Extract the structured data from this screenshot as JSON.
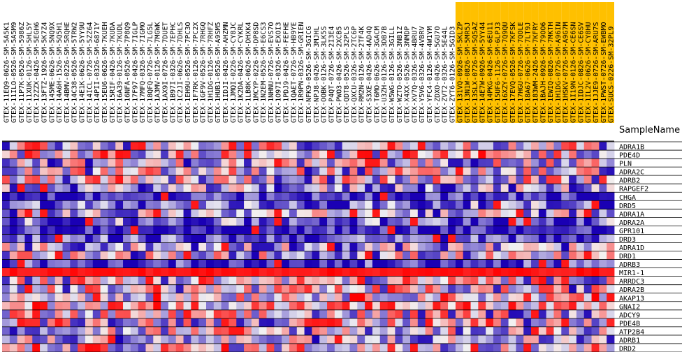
{
  "chart_data": {
    "type": "heatmap",
    "column_header_title": "SampleName",
    "colors": {
      "low": "#1a00b4",
      "mid": "#f2f2f2",
      "high": "#ff0000",
      "header_highlight": "#ffc000",
      "grid": "#000000"
    },
    "samples": [
      "GTEX-11EQ9-0626-SM-5A5K1",
      "GTEX-11ILO-0526-SM-5A5M9",
      "GTEX-11P7K-0526-SM-5986Z",
      "GTEX-11XUK-0126-SM-5HL5Y",
      "GTEX-12ZZX-0426-SM-5EGH6",
      "GTEX-13FTZ-1926-SM-5K7Z4",
      "GTEX-145ME-0626-SM-5NQ9X",
      "GTEX-14A6H-1526-SM-5Q5H1",
      "GTEX-14BMV-0226-SM-5RQHE",
      "GTEX-14C38-0526-SM-5TRW2",
      "GTEX-14E1K-0626-SM-5YY9U",
      "GTEX-14ICL-0726-SM-5ZZ64",
      "GTEX-14PII-0326-SM-6871Y",
      "GTEX-15EU6-0626-SM-7KUEH",
      "GTEX-15RIF-0426-SM-7KUDA",
      "GTEX-16A39-0126-SM-7KUDL",
      "GTEX-16NFA-0526-SM-7P8Q9",
      "GTEX-17F97-0426-SM-7IGLP",
      "GTEX-17MFQ-0326-SM-7IGMO",
      "GTEX-18QFQ-0726-SM-7LG5L",
      "GTEX-1A3MV-0126-SM-7MGWK",
      "GTEX-1AX9I-0726-SM-7DUET",
      "GTEX-1B97I-0326-SM-7EPHC",
      "GTEX-1C2JI-0626-SM-7DHLS",
      "GTEX-1EH9U-0526-SM-7PC3O",
      "GTEX-1F7RK-0126-SM-7PC2X",
      "GTEX-1GF9V-0526-SM-7RHGQ",
      "GTEX-1H1DG-0126-SM-7RHFZ",
      "GTEX-1HUB1-0526-SM-A9SM5",
      "GTEX-1IDJI-0426-SM-AHZMN",
      "GTEX-1JMQI-0226-SM-CY8JC",
      "GTEX-1K2DA-0426-SM-CYKRL",
      "GTEX-1LB8K-0626-SM-DHXK4",
      "GTEX-1MCYP-0226-SM-DP8SD",
      "GTEX-1N2EM-0526-SM-E6CS3",
      "GTEX-1NHNU-0726-SM-EVS7O",
      "GTEX-1O97I-0326-SM-EXOI3",
      "GTEX-1PDJ9-0426-SM-FEFHE",
      "GTEX-1QAET-0726-SM-HB9YE",
      "GTEX-1R9PN-0326-SM-GRIEN",
      "GTEX-NFK9-0526-SM-3GICG",
      "GTEX-NPJ8-0426-SM-3MJHL",
      "GTEX-OOBK-0126-SM-3LK5S",
      "GTEX-P4QT-0726-SM-2I3E4",
      "GTEX-PWO3-0426-SM-2XCB5",
      "GTEX-QDT8-0526-SM-32PLS",
      "GTEX-QXCU-0326-SM-2TC6P",
      "GTEX-RM2N-0126-SM-2TF4K",
      "GTEX-S3XE-0426-SM-4AD4Q",
      "GTEX-T6MO-0626-SM-3GACM",
      "GTEX-U3ZH-0126-SM-3DB7B",
      "GTEX-W5WG-0126-SM-3GILL",
      "GTEX-WZTO-0526-SM-3NB1Z",
      "GTEX-X4XX-0526-SM-3NMDP",
      "GTEX-XV7Q-0326-SM-4BRU7",
      "GTEX-Y5V6-0326-SM-4VBRV",
      "GTEX-YFC4-0126-SM-4W1YM",
      "GTEX-ZDXO-0426-SM-5GU7O",
      "GTEX-ZVT2-0326-SM-5E44L",
      "GTEX-ZYT6-0126-SM-5GID3",
      "GTEX-131VQ-0926-SM-5KLZP",
      "GTEX-13N1W-0826-SM-5MR5J",
      "GTEX-13SLX-0726-SM-5Q5AZ",
      "GTEX-14E7W-0926-SM-5YY44",
      "GTEX-14PKG-0426-SM-6EU11",
      "GTEX-15UF6-1126-SM-6LPJ3",
      "GTEX-16XZY-0726-SM-7Q9QU",
      "GTEX-17EVQ-0526-SM-7KFSK",
      "GTEX-17HGU-0726-SM-7QOLE",
      "GTEX-18A67-0626-SM-7LT9J",
      "GTEX-183WM-2426-SM-7KFRY",
      "GTEX-1BAJH-0926-SM-79OO6",
      "GTEX-1EWIQ-0826-SM-7MKTH",
      "GTEX-1H1DG-0726-SM-A96IN",
      "GTEX-1HSKV-0726-SM-A9G7M",
      "GTEX-1I19N-0126-SM-CE6SN",
      "GTEX-1IDJC-0826-SM-CE6SV",
      "GTEX-1IL2V-0626-SM-CY8HU",
      "GTEX-1JJE9-0726-SM-ARU7S",
      "GTEX-1PWST-0726-SM-EWBMO",
      "GTEX-SUCS-0226-SM-32PL9"
    ],
    "highlighted_from_index": 60,
    "genes": [
      "ADRA1B",
      "PDE4D",
      "PLN",
      "ADRA2C",
      "ADRB2",
      "RAPGEF2",
      "CHGA",
      "DRD5",
      "ADRA1A",
      "ADRA2A",
      "GPR101",
      "DRD3",
      "ADRA1D",
      "DRD1",
      "ADRB3",
      "MIR1-1",
      "ARRDC3",
      "ADRA2B",
      "AKAP13",
      "GNAI2",
      "ADCY9",
      "PDE4B",
      "ATP2B4",
      "ADRB1",
      "DRD2"
    ],
    "row_bias": [
      0.0,
      0.1,
      -0.2,
      -0.1,
      -0.1,
      -0.4,
      -0.9,
      -0.6,
      -0.3,
      -0.6,
      -0.95,
      -0.75,
      -0.3,
      -0.2,
      -0.85,
      1.0,
      0.05,
      -0.1,
      0.2,
      0.3,
      -0.1,
      0.0,
      -0.1,
      -0.3,
      0.1
    ],
    "value_range": [
      -1,
      1
    ]
  }
}
